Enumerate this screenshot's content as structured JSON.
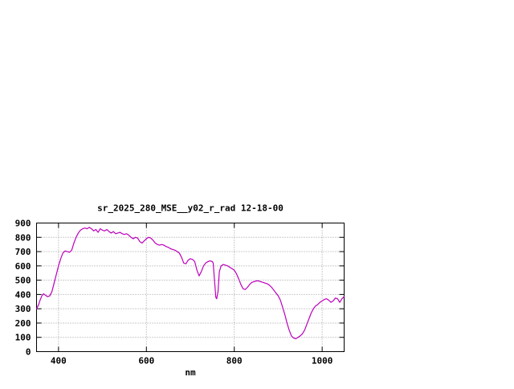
{
  "page": {
    "background": "#ffffff",
    "text_color": "#000000",
    "grid_color": "#9a9a9a",
    "border_color": "#000000"
  },
  "chart_data": {
    "type": "line",
    "title": "sr_2025_280_MSE__y02_r_rad 12-18-00",
    "xlabel": "nm",
    "ylabel": "",
    "xlim": [
      350,
      1050
    ],
    "ylim": [
      0,
      900
    ],
    "xticks": [
      400,
      600,
      800,
      1000
    ],
    "yticks": [
      0,
      100,
      200,
      300,
      400,
      500,
      600,
      700,
      800,
      900
    ],
    "grid": true,
    "legend": "none",
    "line_color": "#bc00bc",
    "series": [
      {
        "name": "sr_2025_280_MSE__y02_r_rad",
        "x": [
          350,
          355,
          358,
          362,
          366,
          370,
          375,
          380,
          385,
          390,
          395,
          400,
          405,
          410,
          415,
          420,
          425,
          430,
          435,
          440,
          445,
          450,
          455,
          460,
          465,
          470,
          475,
          480,
          485,
          490,
          495,
          500,
          505,
          510,
          515,
          520,
          525,
          530,
          535,
          540,
          545,
          550,
          555,
          560,
          565,
          570,
          575,
          580,
          585,
          590,
          595,
          600,
          605,
          610,
          615,
          620,
          625,
          630,
          635,
          640,
          645,
          650,
          655,
          660,
          665,
          670,
          675,
          680,
          685,
          690,
          695,
          700,
          705,
          710,
          715,
          720,
          725,
          730,
          735,
          740,
          745,
          750,
          752,
          755,
          758,
          760,
          763,
          766,
          770,
          775,
          780,
          785,
          790,
          795,
          800,
          805,
          810,
          815,
          820,
          825,
          830,
          835,
          840,
          845,
          850,
          855,
          860,
          865,
          870,
          875,
          880,
          885,
          890,
          895,
          900,
          905,
          910,
          915,
          920,
          925,
          930,
          935,
          940,
          945,
          950,
          955,
          960,
          965,
          970,
          975,
          980,
          985,
          990,
          995,
          1000,
          1005,
          1010,
          1015,
          1020,
          1025,
          1030,
          1035,
          1040,
          1045,
          1050
        ],
        "y": [
          300,
          330,
          360,
          390,
          405,
          395,
          385,
          390,
          420,
          480,
          540,
          600,
          650,
          690,
          705,
          700,
          695,
          710,
          760,
          800,
          830,
          850,
          860,
          865,
          860,
          870,
          860,
          845,
          855,
          835,
          860,
          850,
          845,
          855,
          840,
          830,
          840,
          825,
          830,
          835,
          825,
          820,
          825,
          815,
          800,
          790,
          800,
          795,
          770,
          760,
          775,
          790,
          800,
          795,
          780,
          760,
          750,
          745,
          750,
          745,
          735,
          730,
          720,
          715,
          710,
          700,
          690,
          660,
          620,
          615,
          640,
          650,
          645,
          630,
          570,
          530,
          560,
          600,
          620,
          630,
          635,
          630,
          620,
          500,
          380,
          370,
          420,
          560,
          600,
          610,
          605,
          600,
          590,
          580,
          570,
          545,
          510,
          470,
          440,
          435,
          450,
          470,
          485,
          490,
          495,
          495,
          490,
          485,
          480,
          475,
          465,
          450,
          430,
          410,
          390,
          360,
          310,
          260,
          200,
          150,
          110,
          95,
          90,
          100,
          110,
          125,
          150,
          190,
          230,
          270,
          300,
          320,
          330,
          345,
          355,
          365,
          370,
          360,
          345,
          355,
          375,
          370,
          345,
          370,
          385
        ]
      }
    ]
  }
}
